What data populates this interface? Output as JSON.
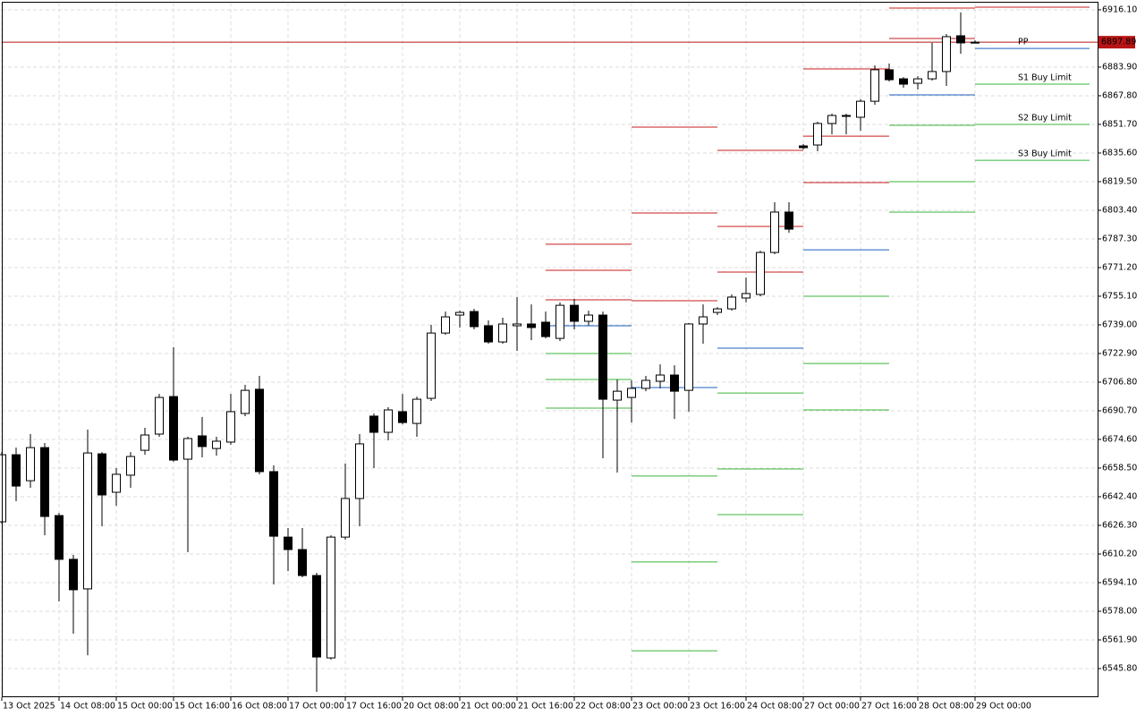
{
  "chart_data": {
    "type": "candlestick",
    "categories": [
      "13 Oct 2025",
      null,
      null,
      null,
      "14 Oct 08:00",
      null,
      null,
      null,
      "15 Oct 00:00",
      null,
      null,
      null,
      "15 Oct 16:00",
      null,
      null,
      null,
      "16 Oct 08:00",
      null,
      null,
      null,
      "17 Oct 00:00",
      null,
      null,
      null,
      "17 Oct 16:00",
      null,
      null,
      null,
      "20 Oct 08:00",
      null,
      null,
      null,
      "21 Oct 00:00",
      null,
      null,
      null,
      "21 Oct 16:00",
      null,
      null,
      null,
      "22 Oct 08:00",
      null,
      null,
      null,
      "23 Oct 00:00",
      null,
      null,
      null,
      "23 Oct 16:00",
      null,
      null,
      null,
      "24 Oct 08:00",
      null,
      null,
      null,
      "27 Oct 00:00",
      null,
      null,
      null,
      "27 Oct 16:00",
      null,
      null,
      null,
      "28 Oct 08:00",
      null,
      null,
      null,
      "29 Oct 00:00"
    ],
    "open": [
      6628.3,
      6666.0,
      6651.4,
      6670.0,
      6631.8,
      6607.2,
      6590.6,
      6666.5,
      6644.9,
      6654.5,
      6668.5,
      6677.6,
      6698.7,
      6663.5,
      6676.6,
      6669.5,
      6673.1,
      6689.2,
      6702.8,
      6656.5,
      6619.7,
      6612.7,
      6598.1,
      6551.8,
      6619.7,
      6641.4,
      6687.7,
      6678.6,
      6690.2,
      6683.6,
      6697.7,
      6734.4,
      6744.5,
      6746.5,
      6738.5,
      6729.4,
      6738.5,
      6739.5,
      6740.5,
      6731.4,
      6750.0,
      6741.0,
      6744.5,
      6696.7,
      6698.2,
      6703.3,
      6707.3,
      6710.8,
      6702.2,
      6739.5,
      6746.0,
      6748.0,
      6754.1,
      6756.1,
      6779.7,
      6802.4,
      6839.6,
      6840.1,
      6852.2,
      6856.2,
      6855.7,
      6864.7,
      6882.4,
      6877.3,
      6874.8,
      6877.3,
      6881.4,
      6901.5,
      6897.5
    ],
    "high": [
      6667.5,
      6670.0,
      6677.6,
      6672.6,
      6633.3,
      6609.7,
      6680.1,
      6667.5,
      6658.5,
      6667.5,
      6681.1,
      6700.2,
      6726.4,
      6676.1,
      6687.2,
      6676.1,
      6700.2,
      6705.3,
      6710.3,
      6660.0,
      6624.8,
      6624.8,
      6599.6,
      6620.7,
      6661.0,
      6677.6,
      6689.2,
      6692.7,
      6700.2,
      6698.7,
      6739.0,
      6746.5,
      6747.0,
      6748.0,
      6741.5,
      6743.0,
      6754.6,
      6750.5,
      6746.5,
      6751.6,
      6753.6,
      6747.0,
      6746.5,
      6708.3,
      6707.8,
      6710.3,
      6716.8,
      6716.3,
      6740.0,
      6750.5,
      6749.0,
      6756.1,
      6765.6,
      6780.7,
      6807.9,
      6807.9,
      6840.6,
      6853.2,
      6857.7,
      6857.7,
      6865.8,
      6884.9,
      6885.9,
      6878.3,
      6878.8,
      6897.5,
      6902.5,
      6914.6,
      6899.0
    ],
    "low": [
      6627.3,
      6639.9,
      6647.4,
      6620.7,
      6583.5,
      6565.4,
      6553.3,
      6625.8,
      6637.3,
      6647.4,
      6666.0,
      6676.1,
      6662.0,
      6611.2,
      6664.5,
      6665.5,
      6671.6,
      6687.7,
      6655.0,
      6593.1,
      6600.6,
      6597.1,
      6532.7,
      6550.8,
      6618.2,
      6625.8,
      6658.5,
      6674.1,
      6683.1,
      6676.1,
      6696.2,
      6733.4,
      6737.5,
      6736.5,
      6728.4,
      6728.4,
      6724.4,
      6730.4,
      6731.4,
      6729.9,
      6736.5,
      6738.5,
      6664.0,
      6656.0,
      6684.1,
      6701.7,
      6703.3,
      6686.1,
      6690.2,
      6728.4,
      6744.5,
      6747.0,
      6751.6,
      6755.1,
      6778.7,
      6790.8,
      6837.6,
      6836.6,
      6846.1,
      6846.1,
      6848.1,
      6862.7,
      6875.8,
      6872.3,
      6871.3,
      6876.3,
      6873.3,
      6891.4,
      6897.5
    ],
    "close": [
      6666.0,
      6648.4,
      6670.0,
      6631.3,
      6607.2,
      6590.1,
      6667.0,
      6643.4,
      6655.0,
      6665.0,
      6677.1,
      6698.2,
      6663.0,
      6675.1,
      6670.6,
      6673.6,
      6690.2,
      6702.2,
      6656.5,
      6620.2,
      6612.7,
      6598.1,
      6552.3,
      6619.7,
      6641.4,
      6672.1,
      6678.6,
      6691.2,
      6684.1,
      6697.2,
      6734.4,
      6743.5,
      6746.0,
      6738.0,
      6729.4,
      6739.5,
      6739.5,
      6737.5,
      6732.4,
      6750.0,
      6741.0,
      6744.5,
      6697.2,
      6701.7,
      6703.3,
      6707.8,
      6710.8,
      6701.7,
      6739.5,
      6743.5,
      6748.0,
      6754.6,
      6756.6,
      6779.7,
      6802.4,
      6792.8,
      6838.6,
      6852.2,
      6856.7,
      6856.7,
      6864.7,
      6882.4,
      6876.8,
      6874.3,
      6877.3,
      6881.4,
      6901.0,
      6897.5,
      6897.89
    ],
    "colors": {
      "up": "#ffffff",
      "down": "#000000",
      "resistance": "#c81e1e",
      "pivot": "#1f5fbf",
      "support": "#3cb43c",
      "price": "#b81414"
    },
    "current_price": 6897.89,
    "pivots": [
      {
        "from": 38,
        "to": 44,
        "resistance": [
          6784.3,
          6769.7,
          6753.1
        ],
        "pivot": 6738.5,
        "support": [
          6722.9,
          6708.3,
          6692.2
        ]
      },
      {
        "from": 44,
        "to": 50,
        "resistance": [
          6850.2,
          6801.9,
          6752.6
        ],
        "pivot": 6703.8,
        "support": [
          6654.0,
          6605.7,
          6555.8
        ]
      },
      {
        "from": 50,
        "to": 56,
        "resistance": [
          6837.1,
          6794.3,
          6768.7
        ],
        "pivot": 6725.9,
        "support": [
          6700.7,
          6658.0,
          6632.3
        ]
      },
      {
        "from": 56,
        "to": 62,
        "resistance": [
          6882.9,
          6845.1,
          6819.0
        ],
        "pivot": 6781.2,
        "support": [
          6755.1,
          6717.3,
          6691.2
        ]
      },
      {
        "from": 62,
        "to": 68,
        "resistance": [
          6917.1,
          6900.0
        ],
        "pivot": 6868.3,
        "support": [
          6851.2,
          6819.5,
          6802.4
        ]
      },
      {
        "from": 68,
        "to": 76,
        "resistance": [
          6917.6
        ],
        "pivot": 6894.4,
        "support": [
          6874.3,
          6851.7,
          6831.5
        ],
        "pivot_label": "PP",
        "support_labels": [
          "S1 Buy Limit",
          "S2 Buy Limit",
          "S3 Buy Limit"
        ]
      }
    ],
    "ylim": [
      6529.7,
      6920.1
    ],
    "yticks": [
      {
        "value": 6545.8,
        "label": "6545.80"
      },
      {
        "value": 6561.9,
        "label": "6561.90"
      },
      {
        "value": 6578,
        "label": "6578.00"
      },
      {
        "value": 6594.1,
        "label": "6594.10"
      },
      {
        "value": 6610.2,
        "label": "6610.20"
      },
      {
        "value": 6626.3,
        "label": "6626.30"
      },
      {
        "value": 6642.4,
        "label": "6642.40"
      },
      {
        "value": 6658.5,
        "label": "6658.50"
      },
      {
        "value": 6674.6,
        "label": "6674.60"
      },
      {
        "value": 6690.7,
        "label": "6690.70"
      },
      {
        "value": 6706.8,
        "label": "6706.80"
      },
      {
        "value": 6722.9,
        "label": "6722.90"
      },
      {
        "value": 6739,
        "label": "6739.00"
      },
      {
        "value": 6755.1,
        "label": "6755.10"
      },
      {
        "value": 6771.2,
        "label": "6771.20"
      },
      {
        "value": 6787.3,
        "label": "6787.30"
      },
      {
        "value": 6803.4,
        "label": "6803.40"
      },
      {
        "value": 6819.5,
        "label": "6819.50"
      },
      {
        "value": 6835.6,
        "label": "6835.60"
      },
      {
        "value": 6851.7,
        "label": "6851.70"
      },
      {
        "value": 6867.8,
        "label": "6867.80"
      },
      {
        "value": 6883.9,
        "label": "6883.90"
      },
      {
        "value": 6916.1,
        "label": "6916.10"
      }
    ],
    "grid": true
  }
}
